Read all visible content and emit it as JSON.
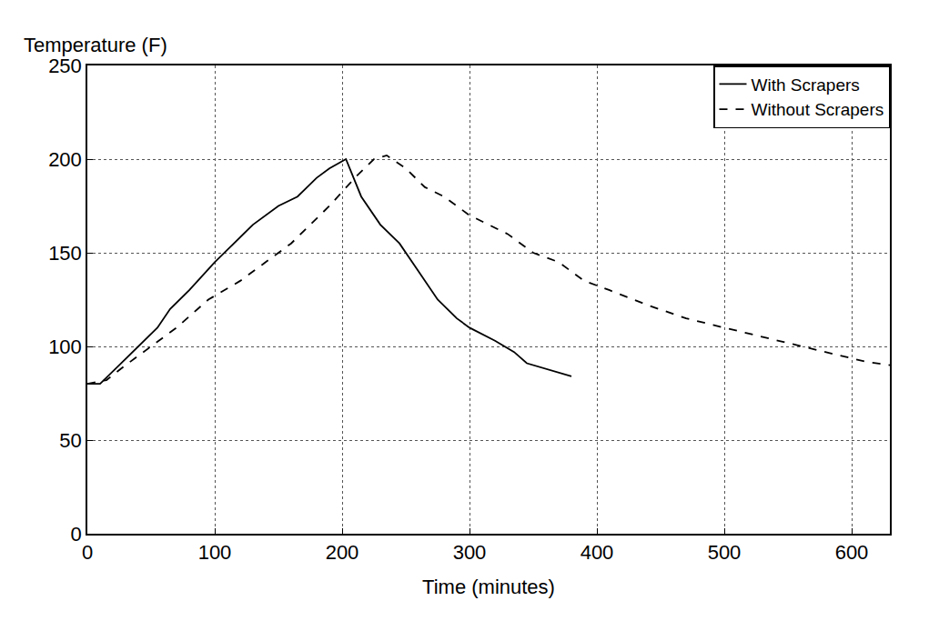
{
  "chart_data": {
    "type": "line",
    "xlabel": "Time (minutes)",
    "ylabel": "Temperature (F)",
    "xlim": [
      0,
      630
    ],
    "ylim": [
      0,
      250
    ],
    "xticks": [
      0,
      100,
      200,
      300,
      400,
      500,
      600
    ],
    "yticks": [
      0,
      50,
      100,
      150,
      200,
      250
    ],
    "grid": true,
    "legend": "upper right",
    "series": [
      {
        "name": "With Scrapers",
        "color": "#000000",
        "line_style": "solid",
        "x": [
          0,
          10,
          25,
          40,
          55,
          65,
          80,
          100,
          115,
          130,
          150,
          165,
          180,
          190,
          203,
          215,
          230,
          245,
          260,
          275,
          290,
          300,
          320,
          335,
          345,
          360,
          380
        ],
        "values": [
          80,
          80,
          90,
          100,
          110,
          120,
          130,
          145,
          155,
          165,
          175,
          180,
          190,
          195,
          200,
          180,
          165,
          155,
          140,
          125,
          115,
          110,
          103,
          97,
          91,
          88,
          84
        ]
      },
      {
        "name": "Without Scrapers",
        "color": "#000000",
        "line_style": "dash",
        "x": [
          0,
          15,
          30,
          50,
          70,
          95,
          120,
          140,
          160,
          175,
          190,
          210,
          225,
          235,
          250,
          265,
          280,
          300,
          330,
          350,
          370,
          390,
          410,
          440,
          470,
          500,
          530,
          560,
          590,
          610,
          630
        ],
        "values": [
          80,
          82,
          90,
          100,
          110,
          125,
          135,
          145,
          155,
          165,
          175,
          190,
          200,
          202,
          195,
          185,
          180,
          170,
          160,
          150,
          145,
          135,
          130,
          122,
          115,
          110,
          105,
          100,
          95,
          92,
          90
        ]
      }
    ]
  }
}
